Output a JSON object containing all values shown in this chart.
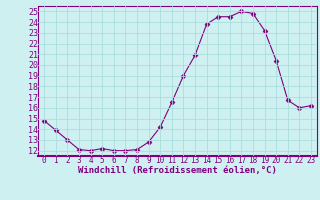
{
  "hours": [
    0,
    1,
    2,
    3,
    4,
    5,
    6,
    7,
    8,
    9,
    10,
    11,
    12,
    13,
    14,
    15,
    16,
    17,
    18,
    19,
    20,
    21,
    22,
    23
  ],
  "values": [
    14.8,
    13.9,
    13.0,
    12.1,
    12.0,
    12.2,
    12.0,
    12.0,
    12.1,
    12.8,
    14.2,
    16.5,
    19.0,
    20.9,
    23.8,
    24.5,
    24.5,
    25.0,
    24.8,
    23.2,
    20.4,
    16.7,
    16.0,
    16.2
  ],
  "line_color": "#800080",
  "marker": "D",
  "marker_size": 2.5,
  "bg_color": "#cff0f0",
  "grid_color": "#aadddd",
  "xlabel": "Windchill (Refroidissement éolien,°C)",
  "xlabel_color": "#800080",
  "tick_color": "#800080",
  "ylim": [
    11.5,
    25.5
  ],
  "xlim": [
    -0.5,
    23.5
  ],
  "yticks": [
    12,
    13,
    14,
    15,
    16,
    17,
    18,
    19,
    20,
    21,
    22,
    23,
    24,
    25
  ],
  "xticks": [
    0,
    1,
    2,
    3,
    4,
    5,
    6,
    7,
    8,
    9,
    10,
    11,
    12,
    13,
    14,
    15,
    16,
    17,
    18,
    19,
    20,
    21,
    22,
    23
  ],
  "spine_color": "#800080",
  "xlabel_fontsize": 6.5,
  "ytick_fontsize": 6,
  "xtick_fontsize": 5.5
}
